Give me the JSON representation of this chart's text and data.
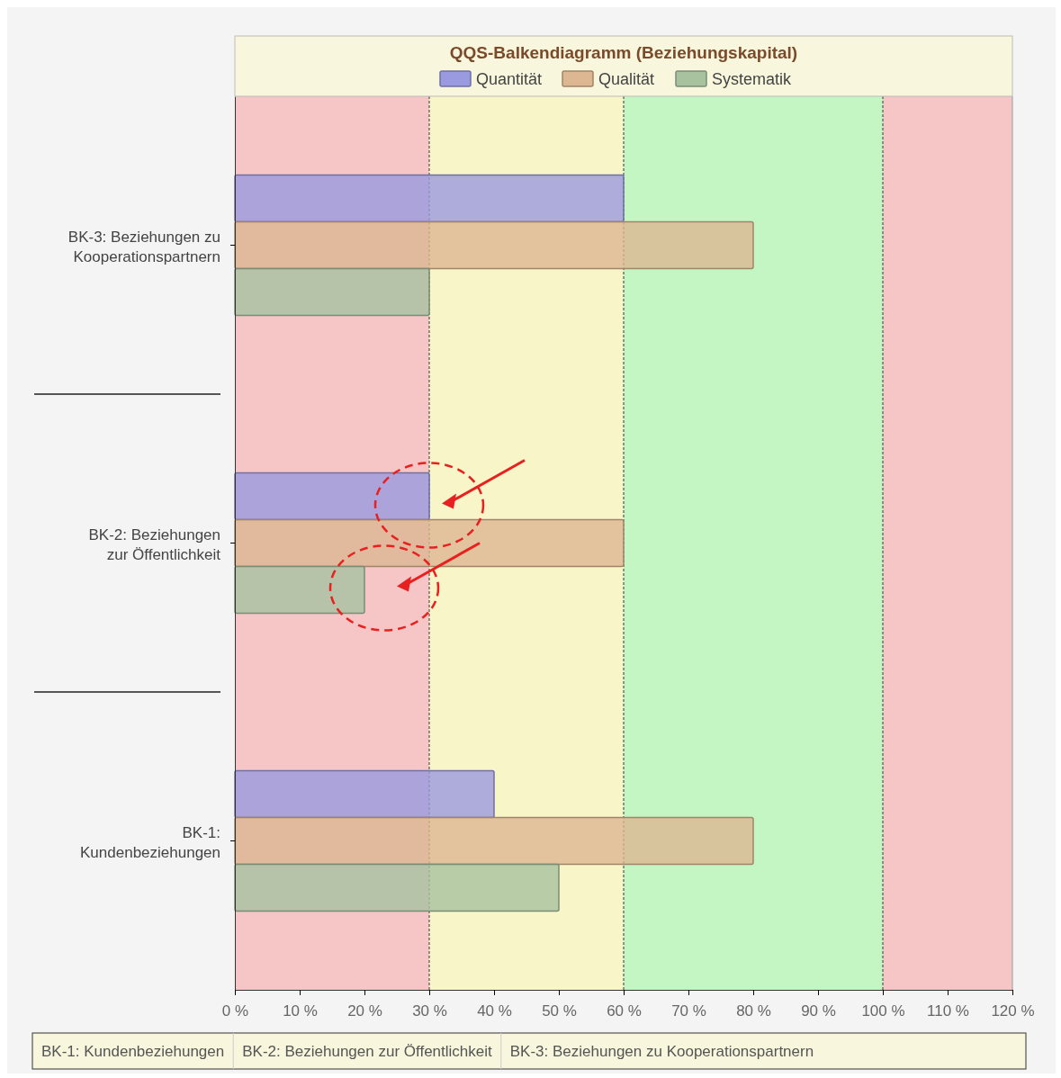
{
  "chart_data": {
    "type": "bar",
    "orientation": "horizontal",
    "title": "QQS-Balkendiagramm (Beziehungskapital)",
    "categories": [
      "BK-3: Beziehungen zu Kooperationspartnern",
      "BK-2: Beziehungen zur Öffentlichkeit",
      "BK-1: Kundenbeziehungen"
    ],
    "series": [
      {
        "name": "Quantität",
        "color": "#9a9ae0",
        "values": [
          60,
          30,
          40
        ]
      },
      {
        "name": "Qualität",
        "color": "#dcb792",
        "values": [
          80,
          60,
          80
        ]
      },
      {
        "name": "Systematik",
        "color": "#a8c2a0",
        "values": [
          30,
          20,
          50
        ]
      }
    ],
    "xlim": [
      0,
      120
    ],
    "xticks": [
      {
        "value": 0,
        "label": "0 %"
      },
      {
        "value": 10,
        "label": "10 %"
      },
      {
        "value": 20,
        "label": "20 %"
      },
      {
        "value": 30,
        "label": "30 %"
      },
      {
        "value": 40,
        "label": "40 %"
      },
      {
        "value": 50,
        "label": "50 %"
      },
      {
        "value": 60,
        "label": "60 %"
      },
      {
        "value": 70,
        "label": "70 %"
      },
      {
        "value": 80,
        "label": "80 %"
      },
      {
        "value": 90,
        "label": "90 %"
      },
      {
        "value": 100,
        "label": "100 %"
      },
      {
        "value": 110,
        "label": "110 %"
      },
      {
        "value": 120,
        "label": "120 %"
      }
    ],
    "bands": [
      {
        "axis": "x",
        "from": 0,
        "to": 30,
        "color": "#f6c6c6"
      },
      {
        "axis": "x",
        "from": 30,
        "to": 60,
        "color": "#f8f6c8"
      },
      {
        "axis": "x",
        "from": 60,
        "to": 100,
        "color": "#c4f6c4"
      },
      {
        "axis": "x",
        "from": 100,
        "to": 120,
        "color": "#f6c6c6"
      }
    ],
    "ref_lines": [
      {
        "axis": "x",
        "value": 30,
        "color": "#555555",
        "line_style": "dashed"
      },
      {
        "axis": "x",
        "value": 60,
        "color": "#555555",
        "line_style": "dashed"
      },
      {
        "axis": "x",
        "value": 100,
        "color": "#555555",
        "line_style": "dashed"
      }
    ],
    "legend": "top",
    "grid": false,
    "annotations": [
      "BK-1: Kundenbeziehungen",
      "BK-2: Beziehungen zur Öffentlichkeit",
      "BK-3: Beziehungen zu Kooperationspartnern"
    ]
  }
}
